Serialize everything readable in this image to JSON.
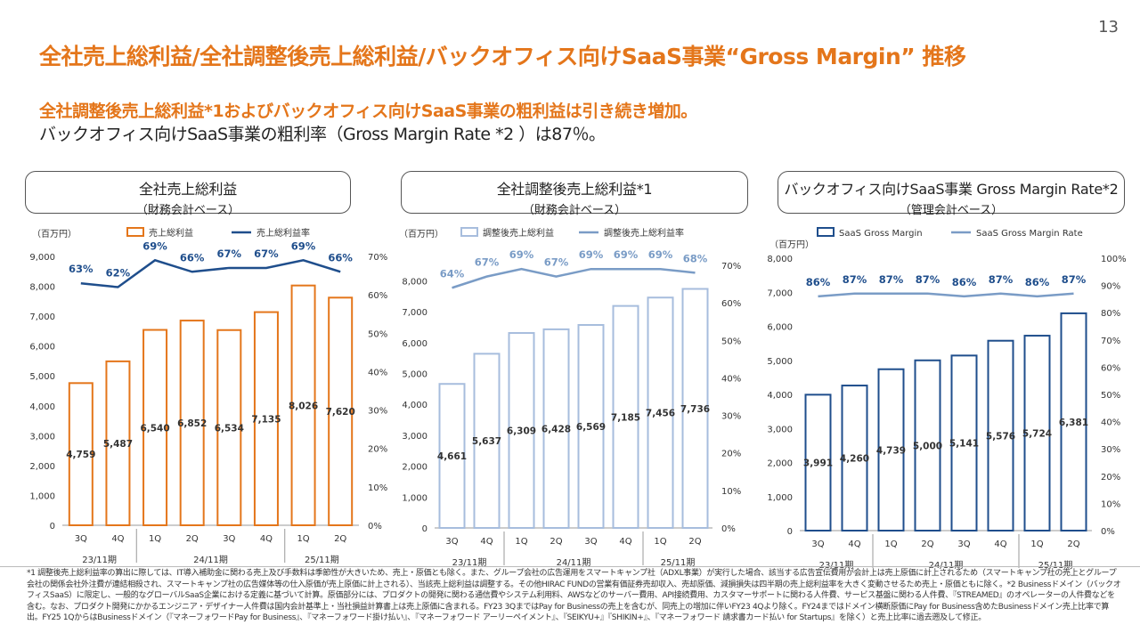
{
  "page_number": "13",
  "title": "全社売上総利益/全社調整後売上総利益/バックオフィス向けSaaS事業“Gross Margin” 推移",
  "subtitle_line1": "全社調整後売上総利益*1およびバックオフィス向けSaaS事業の粗利益は引き続き増加。",
  "subtitle_line2": "バックオフィス向けSaaS事業の粗利率（Gross Margin Rate *2 ）は87％。",
  "panels": [
    {
      "title": "全社売上総利益",
      "subtitle": "（財務会計ベース）"
    },
    {
      "title": "全社調整後売上総利益*1",
      "subtitle": "（財務会計ベース）"
    },
    {
      "title": "バックオフィス向けSaaS事業 Gross Margin Rate*2",
      "subtitle": "（管理会計ベース）"
    }
  ],
  "colors": {
    "orange": "#E4761B",
    "navy": "#1F4E8C",
    "lightblue": "#A7BDDD",
    "lightline": "#7A9CC6",
    "title": "#E4761B"
  },
  "chart_data": [
    {
      "type": "bar",
      "unit_label": "（百万円）",
      "categories": [
        "3Q",
        "4Q",
        "1Q",
        "2Q",
        "3Q",
        "4Q",
        "1Q",
        "2Q"
      ],
      "groups": [
        {
          "label": "23/11期",
          "from": 0,
          "to": 1
        },
        {
          "label": "24/11期",
          "from": 2,
          "to": 5
        },
        {
          "label": "25/11期",
          "from": 6,
          "to": 7
        }
      ],
      "series": [
        {
          "name": "売上総利益",
          "type": "bar",
          "values": [
            4759,
            5487,
            6540,
            6852,
            6534,
            7135,
            8026,
            7620
          ],
          "labels": [
            "4,759",
            "5,487",
            "6,540",
            "6,852",
            "6,534",
            "7,135",
            "8,026",
            "7,620"
          ]
        },
        {
          "name": "売上総利益率",
          "type": "line",
          "axis": "right",
          "values": [
            63,
            62,
            69,
            66,
            67,
            67,
            69,
            66
          ],
          "labels": [
            "63%",
            "62%",
            "69%",
            "66%",
            "67%",
            "67%",
            "69%",
            "66%"
          ]
        }
      ],
      "ylim": [
        0,
        9000
      ],
      "yticks": [
        "0",
        "1,000",
        "2,000",
        "3,000",
        "4,000",
        "5,000",
        "6,000",
        "7,000",
        "8,000",
        "9,000"
      ],
      "y2lim": [
        0,
        70
      ],
      "y2ticks": [
        "0%",
        "10%",
        "20%",
        "30%",
        "40%",
        "50%",
        "60%",
        "70%"
      ],
      "style": {
        "bar": "orange-outline",
        "line": "navy"
      }
    },
    {
      "type": "bar",
      "unit_label": "（百万円）",
      "categories": [
        "3Q",
        "4Q",
        "1Q",
        "2Q",
        "3Q",
        "4Q",
        "1Q",
        "2Q"
      ],
      "groups": [
        {
          "label": "23/11期",
          "from": 0,
          "to": 1
        },
        {
          "label": "24/11期",
          "from": 2,
          "to": 5
        },
        {
          "label": "25/11期",
          "from": 6,
          "to": 7
        }
      ],
      "series": [
        {
          "name": "調整後売上総利益",
          "type": "bar",
          "values": [
            4661,
            5637,
            6309,
            6428,
            6569,
            7185,
            7456,
            7736
          ],
          "labels": [
            "4,661",
            "5,637",
            "6,309",
            "6,428",
            "6,569",
            "7,185",
            "7,456",
            "7,736"
          ]
        },
        {
          "name": "調整後売上総利益率",
          "type": "line",
          "axis": "right",
          "values": [
            64,
            67,
            69,
            67,
            69,
            69,
            69,
            68
          ],
          "labels": [
            "64%",
            "67%",
            "69%",
            "67%",
            "69%",
            "69%",
            "69%",
            "68%"
          ]
        }
      ],
      "ylim": [
        0,
        8500
      ],
      "yticks": [
        "0",
        "1,000",
        "2,000",
        "3,000",
        "4,000",
        "5,000",
        "6,000",
        "7,000",
        "8,000"
      ],
      "y2lim": [
        0,
        70
      ],
      "y2ticks": [
        "0%",
        "10%",
        "20%",
        "30%",
        "40%",
        "50%",
        "60%",
        "70%"
      ],
      "style": {
        "bar": "lightblue-outline",
        "line": "lightblue"
      }
    },
    {
      "type": "bar",
      "unit_label": "（百万円）",
      "categories": [
        "3Q",
        "4Q",
        "1Q",
        "2Q",
        "3Q",
        "4Q",
        "1Q",
        "2Q"
      ],
      "groups": [
        {
          "label": "23/11期",
          "from": 0,
          "to": 1
        },
        {
          "label": "24/11期",
          "from": 2,
          "to": 5
        },
        {
          "label": "25/11期",
          "from": 6,
          "to": 7
        }
      ],
      "series": [
        {
          "name": "SaaS Gross Margin",
          "type": "bar",
          "values": [
            3991,
            4260,
            4739,
            5000,
            5141,
            5576,
            5724,
            6381
          ],
          "labels": [
            "3,991",
            "4,260",
            "4,739",
            "5,000",
            "5,141",
            "5,576",
            "5,724",
            "6,381"
          ]
        },
        {
          "name": "SaaS Gross Margin Rate",
          "type": "line",
          "axis": "right",
          "values": [
            86,
            87,
            87,
            87,
            86,
            87,
            86,
            87
          ],
          "labels": [
            "86%",
            "87%",
            "87%",
            "87%",
            "86%",
            "87%",
            "86%",
            "87%"
          ]
        }
      ],
      "ylim": [
        0,
        8000
      ],
      "yticks": [
        "0",
        "1,000",
        "2,000",
        "3,000",
        "4,000",
        "5,000",
        "6,000",
        "7,000",
        "8,000"
      ],
      "y2lim": [
        0,
        100
      ],
      "y2ticks": [
        "0%",
        "10%",
        "20%",
        "30%",
        "40%",
        "50%",
        "60%",
        "70%",
        "80%",
        "90%",
        "100%"
      ],
      "style": {
        "bar": "navy-outline",
        "line": "navy"
      }
    }
  ],
  "footnote": "*1 調整後売上総利益率の算出に際しては、IT導入補助金に関わる売上及び手数料は季節性が大きいため、売上・原価とも除く。また、グループ会社の広告運用をスマートキャンプ社（ADXL事業）が実行した場合、該当する広告宣伝費用が会計上は売上原価に計上されるため（スマートキャンプ社の売上とグループ会社の関係会社外注費が連結相殺され、スマートキャンプ社の広告媒体等の仕入原価が売上原価に計上される）、当該売上総利益は調整する。その他HIRAC FUNDの営業有価証券売却収入、売却原価、減損損失は四半期の売上総利益率を大きく変動させるため売上・原価ともに除く。*2 Businessドメイン（バックオフィスSaaS）に限定し、一般的なグローバルSaaS企業における定義に基づいて計算。原価部分には、プロダクトの開発に関わる通信費やシステム利用料、AWSなどのサーバー費用、API接続費用、カスタマーサポートに関わる人件費、サービス基盤に関わる人件費、『STREAMED』のオペレーターの人件費などを含む。なお、プロダクト開発にかかるエンジニア・デザイナー人件費は国内会計基準上・当社損益計算書上は売上原価に含まれる。FY23 3QまではPay for Businessの売上を含むが、同売上の増加に伴いFY23 4Qより除く。FY24まではドメイン横断原価にPay for Business含めたBusinessドメイン売上比率で算出。FY25 1QからはBusinessドメイン（『マネーフォワードPay for Business』、『マネーフォワード掛け払い』、『マネーフォワード アーリーペイメント』、『SEIKYU+』『SHIKIN+』、『マネーフォワード 請求書カード払い for Startups』を除く）と売上比率に過去遡及して修正。"
}
